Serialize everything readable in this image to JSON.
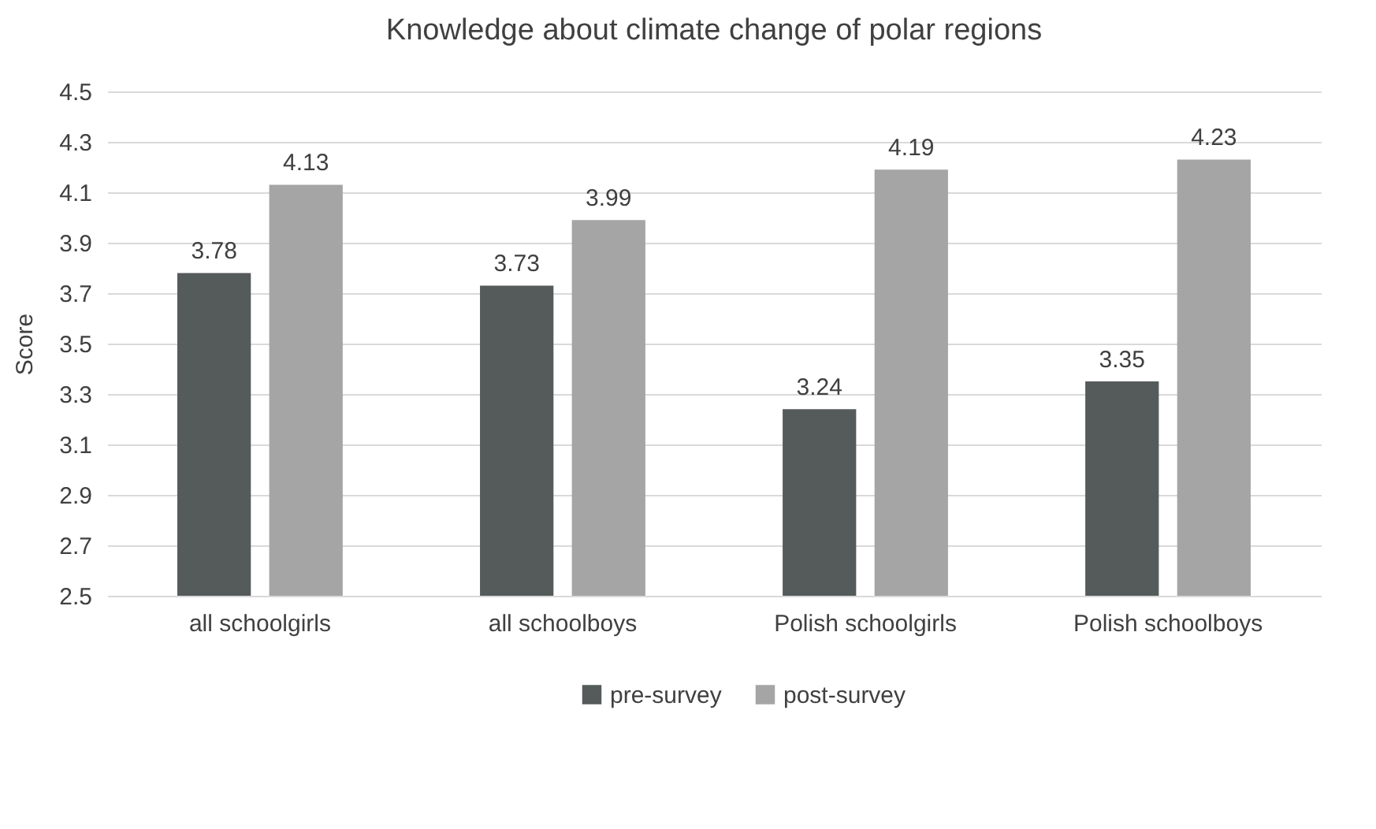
{
  "chart_data": {
    "type": "bar",
    "title": "Knowledge about climate change of polar regions",
    "ylabel": "Score",
    "categories": [
      "all schoolgirls",
      "all schoolboys",
      "Polish schoolgirls",
      "Polish schoolboys"
    ],
    "series": [
      {
        "name": "pre-survey",
        "color": "#555a5a",
        "values": [
          3.78,
          3.73,
          3.24,
          3.35
        ]
      },
      {
        "name": "post-survey",
        "color": "#a5a5a5",
        "values": [
          4.13,
          3.99,
          4.19,
          4.23
        ]
      }
    ],
    "ylim": [
      2.5,
      4.5
    ],
    "yticks": [
      2.5,
      2.7,
      2.9,
      3.1,
      3.3,
      3.5,
      3.7,
      3.9,
      4.1,
      4.3,
      4.5
    ],
    "grid": "y",
    "legend": "bottom",
    "data_labels": true
  }
}
